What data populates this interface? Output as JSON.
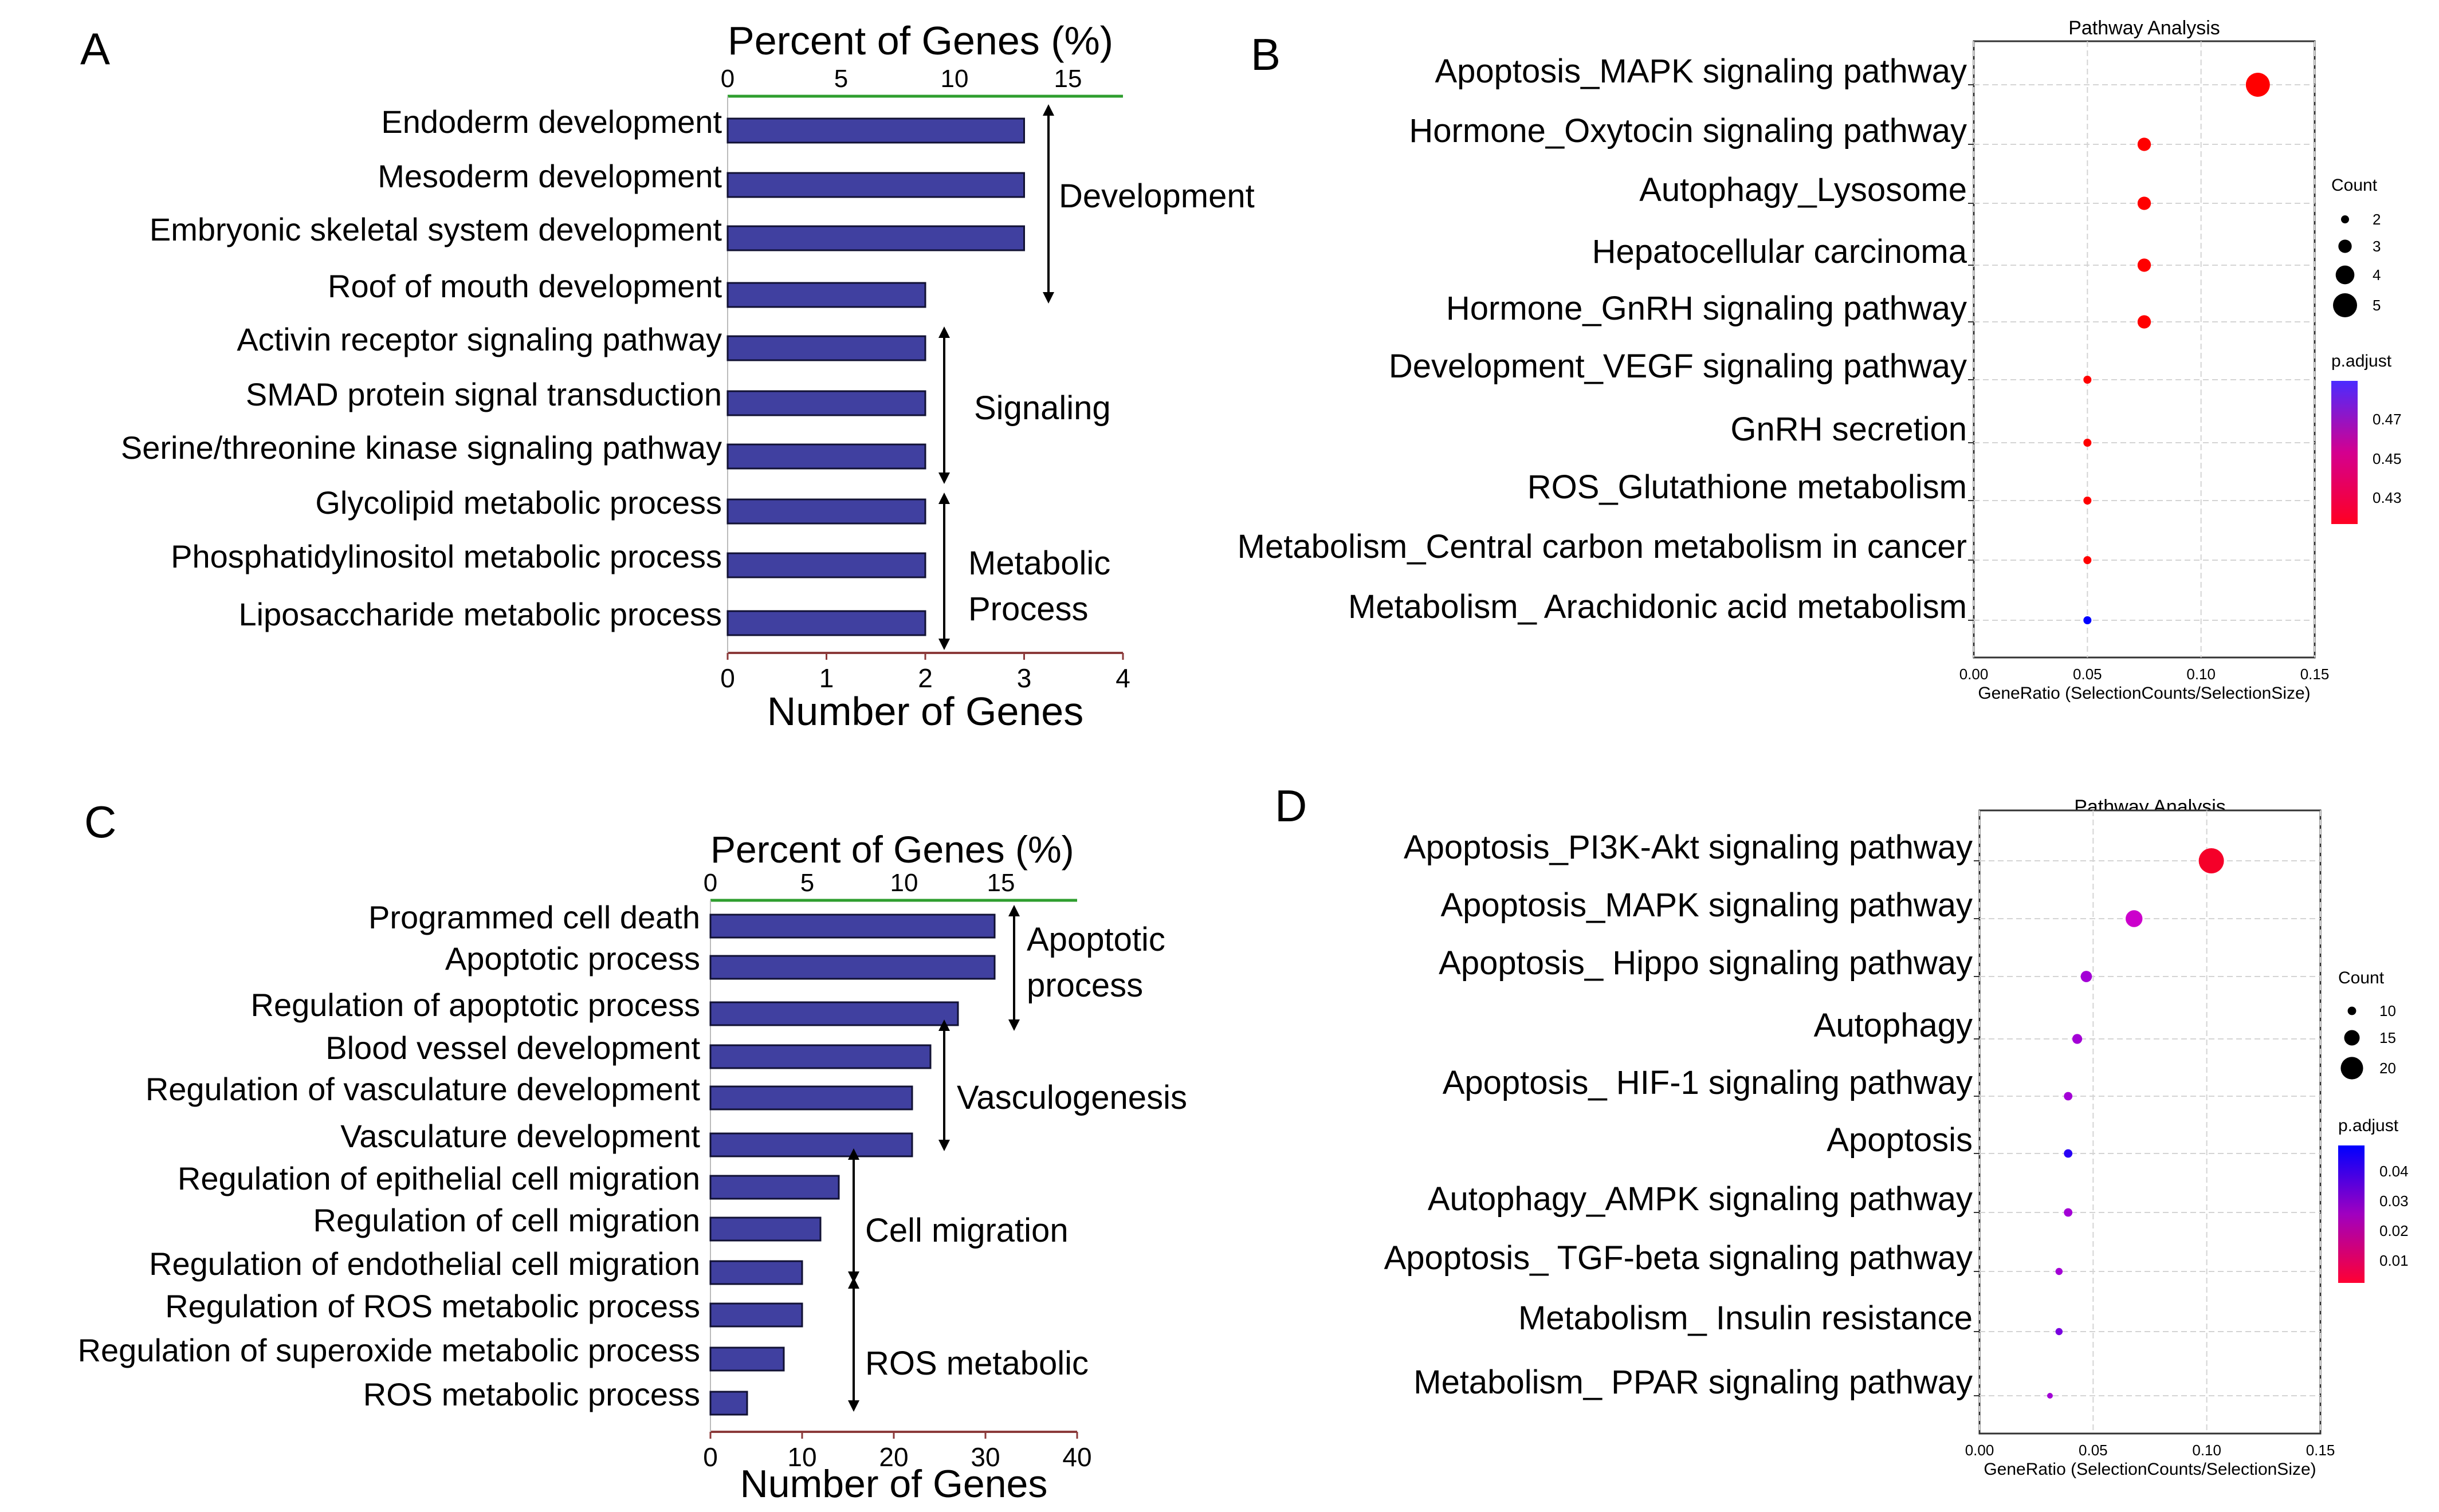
{
  "panel_labels": [
    "A",
    "B",
    "C",
    "D"
  ],
  "colors": {
    "bar_fill": "#4040a0",
    "bar_stroke": "#111133",
    "top_axis": "#2e9e2e",
    "bottom_axis": "#8b3a3a",
    "grid": "#d4d4d4",
    "low_padj": "#ff0000",
    "mid_padj": "#cc00cc",
    "high_padj": "#0000ff"
  },
  "chart_data": [
    {
      "id": "A",
      "type": "bar",
      "orientation": "horizontal",
      "top_axis_title": "Percent of Genes (%)",
      "top_ticks": [
        "0",
        "5",
        "10",
        "15"
      ],
      "xlabel": "Number of Genes",
      "bottom_ticks": [
        "0",
        "1",
        "2",
        "3",
        "4"
      ],
      "xlim": [
        0,
        4
      ],
      "categories": [
        "Endoderm development",
        "Mesoderm development",
        "Embryonic skeletal system development",
        "Roof of mouth development",
        "Activin receptor signaling pathway",
        "SMAD protein signal transduction",
        "Serine/threonine kinase signaling pathway",
        "Glycolipid metabolic process",
        "Phosphatidylinositol metabolic process",
        "Liposaccharide metabolic process"
      ],
      "values": [
        3,
        3,
        3,
        2,
        2,
        2,
        2,
        2,
        2,
        2
      ],
      "groups": [
        {
          "label": "Development",
          "label_lines": [
            "Development"
          ]
        },
        {
          "label": "Signaling",
          "label_lines": [
            "Signaling"
          ]
        },
        {
          "label": "Metabolic Process",
          "label_lines": [
            "Metabolic",
            "Process"
          ]
        }
      ]
    },
    {
      "id": "B",
      "type": "scatter",
      "title": "Pathway Analysis",
      "xlabel": "GeneRatio (SelectionCounts/SelectionSize)",
      "x_ticks": [
        "0.00",
        "0.05",
        "0.10",
        "0.15"
      ],
      "xlim": [
        0,
        0.15
      ],
      "categories": [
        "Apoptosis_MAPK signaling pathway",
        "Hormone_Oxytocin signaling pathway",
        "Autophagy_Lysosome",
        "Hepatocellular carcinoma",
        "Hormone_GnRH signaling pathway",
        "Development_VEGF signaling pathway",
        "GnRH secretion",
        "ROS_Glutathione metabolism",
        "Metabolism_Central carbon metabolism in cancer",
        "Metabolism_ Arachidonic acid metabolism"
      ],
      "gene_ratio": [
        0.125,
        0.075,
        0.075,
        0.075,
        0.075,
        0.05,
        0.05,
        0.05,
        0.05,
        0.05
      ],
      "count": [
        5,
        3,
        3,
        3,
        3,
        2,
        2,
        2,
        2,
        2
      ],
      "p_adjust": [
        0.41,
        0.41,
        0.41,
        0.41,
        0.41,
        0.41,
        0.41,
        0.41,
        0.41,
        0.49
      ],
      "size_legend_title": "Count",
      "size_legend": [
        "2",
        "3",
        "4",
        "5"
      ],
      "color_legend_title": "p.adjust",
      "color_legend_ticks": [
        "0.47",
        "0.45",
        "0.43"
      ]
    },
    {
      "id": "C",
      "type": "bar",
      "orientation": "horizontal",
      "top_axis_title": "Percent of Genes (%)",
      "top_ticks": [
        "0",
        "5",
        "10",
        "15"
      ],
      "xlabel": "Number of Genes",
      "bottom_ticks": [
        "0",
        "10",
        "20",
        "30",
        "40"
      ],
      "xlim": [
        0,
        40
      ],
      "categories": [
        "Programmed cell death",
        "Apoptotic process",
        "Regulation of apoptotic process",
        "Blood vessel development",
        "Regulation of vasculature development",
        "Vasculature development",
        "Regulation of epithelial cell migration",
        "Regulation of cell migration",
        "Regulation of endothelial cell migration",
        "Regulation of ROS metabolic process",
        "Regulation of superoxide metabolic process",
        "ROS metabolic process"
      ],
      "values": [
        31,
        31,
        27,
        24,
        22,
        22,
        14,
        12,
        10,
        10,
        8,
        4
      ],
      "groups": [
        {
          "label": "Apoptotic process",
          "label_lines": [
            "Apoptotic",
            "process"
          ]
        },
        {
          "label": "Vasculogenesis",
          "label_lines": [
            "Vasculogenesis"
          ]
        },
        {
          "label": "Cell migration",
          "label_lines": [
            "Cell migration"
          ]
        },
        {
          "label": "ROS metabolic",
          "label_lines": [
            "ROS metabolic"
          ]
        }
      ]
    },
    {
      "id": "D",
      "type": "scatter",
      "title": "Pathway Analysis",
      "xlabel": "GeneRatio (SelectionCounts/SelectionSize)",
      "x_ticks": [
        "0.00",
        "0.05",
        "0.10",
        "0.15"
      ],
      "xlim": [
        0,
        0.15
      ],
      "categories": [
        "Apoptosis_PI3K-Akt signaling pathway",
        "Apoptosis_MAPK signaling pathway",
        "Apoptosis_ Hippo signaling pathway",
        "Autophagy",
        "Apoptosis_ HIF-1 signaling pathway",
        "Apoptosis",
        "Autophagy_AMPK signaling pathway",
        "Apoptosis_ TGF-beta signaling pathway",
        "Metabolism_ Insulin resistance",
        "Metabolism_ PPAR signaling pathway"
      ],
      "gene_ratio": [
        0.102,
        0.068,
        0.047,
        0.043,
        0.039,
        0.039,
        0.039,
        0.035,
        0.035,
        0.031
      ],
      "count": [
        22,
        16,
        12,
        11,
        10,
        10,
        10,
        9,
        9,
        8
      ],
      "p_adjust": [
        0.005,
        0.025,
        0.03,
        0.03,
        0.03,
        0.045,
        0.03,
        0.03,
        0.035,
        0.03
      ],
      "size_legend_title": "Count",
      "size_legend": [
        "10",
        "15",
        "20"
      ],
      "color_legend_title": "p.adjust",
      "color_legend_ticks": [
        "0.04",
        "0.03",
        "0.02",
        "0.01"
      ]
    }
  ]
}
